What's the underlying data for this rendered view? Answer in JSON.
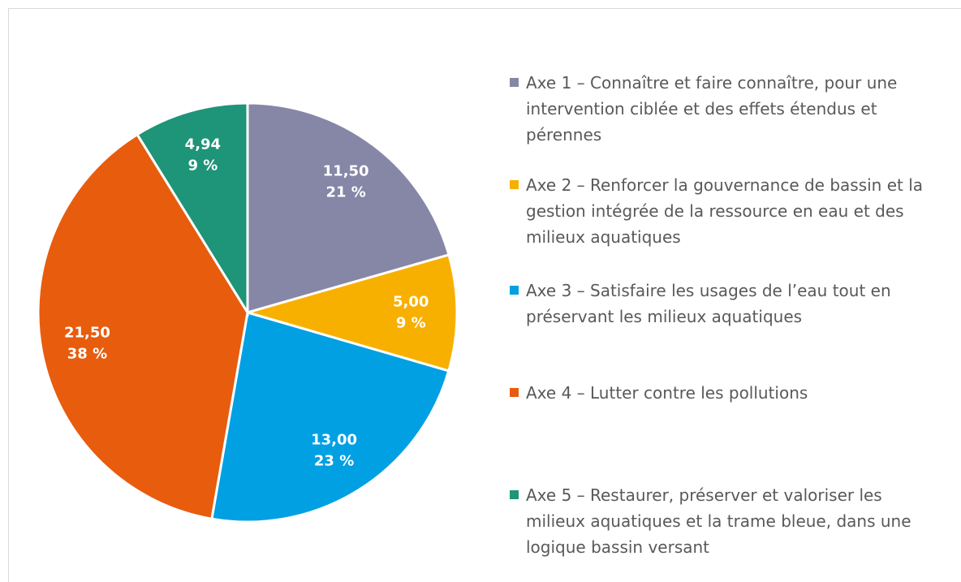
{
  "chart_data": {
    "type": "pie",
    "categories": [
      "Axe 1 – Connaître et faire connaître, pour une intervention ciblée et des effets étendus et pérennes",
      "Axe 2 – Renforcer la gouvernance de bassin et la gestion intégrée de la ressource en eau et des milieux aquatiques",
      "Axe 3 – Satisfaire les usages de l’eau tout en préservant les milieux aquatiques",
      "Axe 4 – Lutter contre les pollutions",
      "Axe 5 – Restaurer, préserver et valoriser les milieux aquatiques et la trame bleue, dans une logique bassin versant"
    ],
    "values": [
      11.5,
      5.0,
      13.0,
      21.5,
      4.94
    ],
    "value_labels": [
      "11,50",
      "5,00",
      "13,00",
      "21,50",
      "4,94"
    ],
    "percent_labels": [
      "21 %",
      "9 %",
      "23 %",
      "38 %",
      "9 %"
    ],
    "colors": [
      "#8687a7",
      "#f8b000",
      "#00a0e3",
      "#e85c0d",
      "#1e9478"
    ],
    "legend": "right"
  }
}
